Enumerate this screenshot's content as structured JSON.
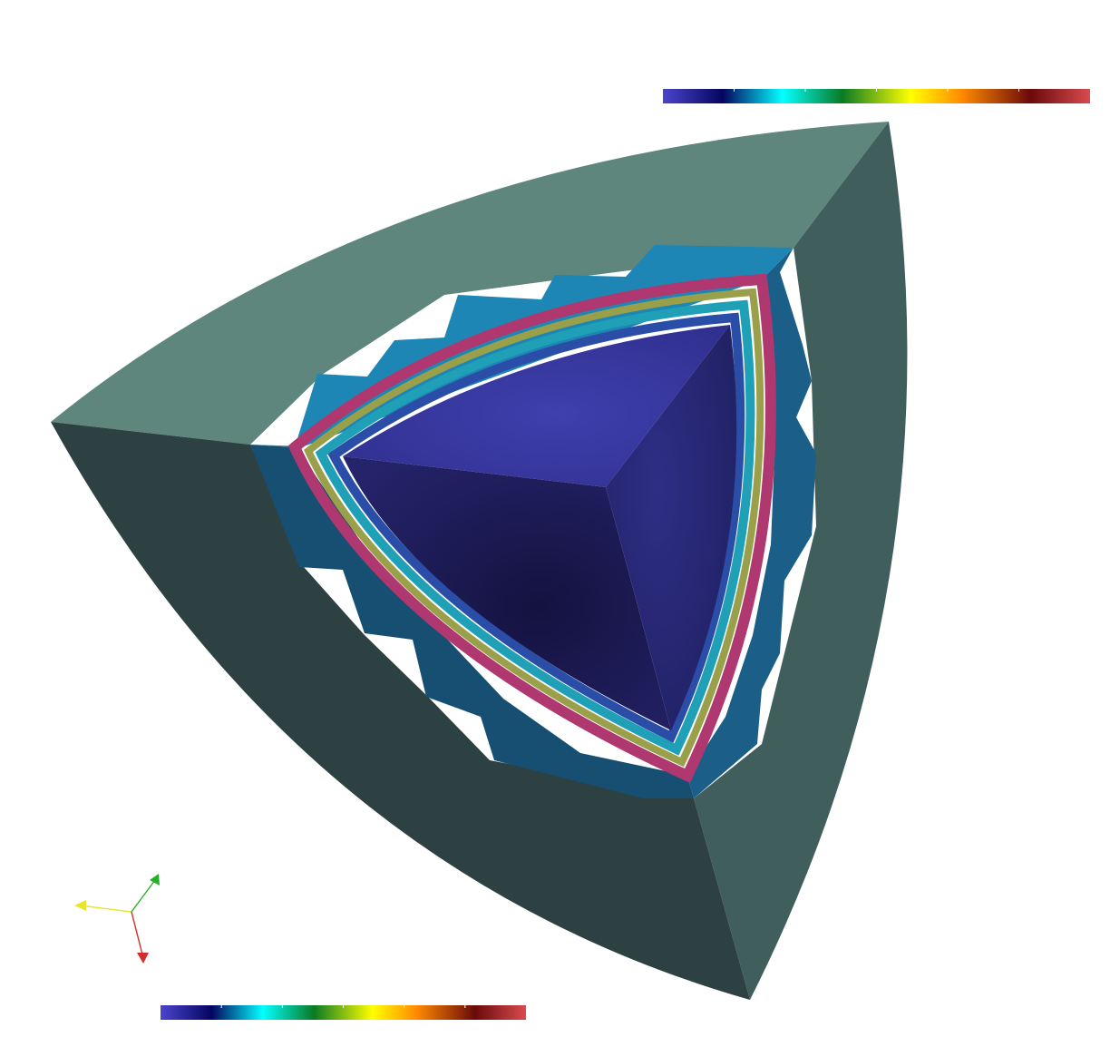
{
  "view": {
    "background": "#ffffff"
  },
  "colormap": {
    "stops": [
      {
        "offset": 0.0,
        "color": "#4a45cc"
      },
      {
        "offset": 0.14,
        "color": "#050560"
      },
      {
        "offset": 0.28,
        "color": "#04ffff"
      },
      {
        "offset": 0.42,
        "color": "#0a7a24"
      },
      {
        "offset": 0.58,
        "color": "#ffff00"
      },
      {
        "offset": 0.7,
        "color": "#ff8a00"
      },
      {
        "offset": 0.86,
        "color": "#6a0a0a"
      },
      {
        "offset": 1.0,
        "color": "#d94b4f"
      }
    ],
    "tick_count": 6
  },
  "model": {
    "outer_shell_top_color": "#5e867c",
    "outer_shell_left_color": "#2d4143",
    "outer_shell_right_color": "#405f5c",
    "mesh_top_color": "#1e86b4",
    "mesh_left_color": "#174f73",
    "mesh_right_color": "#1b5f89",
    "inner_top_color": "#3b3ba2",
    "inner_left_color": "#1e1c56",
    "inner_right_color": "#2c2c7c"
  },
  "orientation_axes": {
    "x_color": "#d62b2b",
    "y_color": "#e6e62c",
    "z_color": "#27b027"
  }
}
